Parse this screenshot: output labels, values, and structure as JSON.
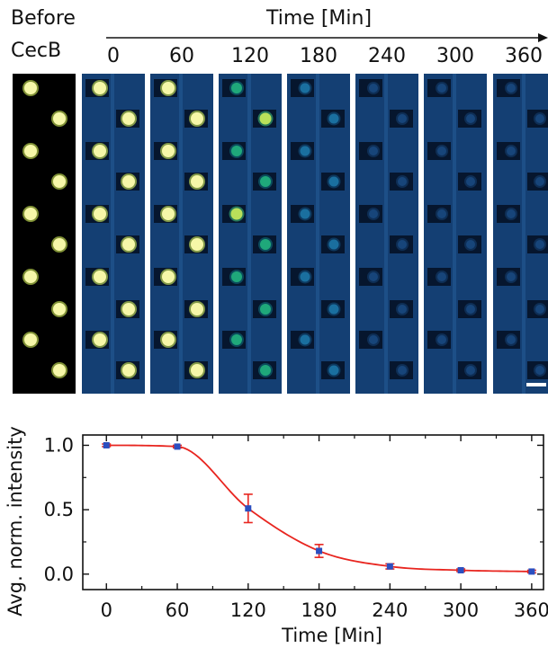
{
  "header": {
    "before_label_line1": "Before",
    "before_label_line2": "CecB",
    "time_axis_label": "Time [Min]",
    "time_labels": [
      "0",
      "60",
      "120",
      "180",
      "240",
      "300",
      "360"
    ]
  },
  "micrographs": {
    "panel_count": 8,
    "droplet_brightness": [
      1.0,
      1.0,
      0.99,
      0.51,
      0.18,
      0.06,
      0.03,
      0.02
    ]
  },
  "chart_data": {
    "type": "scatter",
    "x": [
      0,
      60,
      120,
      180,
      240,
      300,
      360
    ],
    "y": [
      1.0,
      0.99,
      0.51,
      0.18,
      0.06,
      0.03,
      0.02
    ],
    "error": [
      0.01,
      0.01,
      0.11,
      0.05,
      0.02,
      0.01,
      0.01
    ],
    "fit_line": true,
    "xlabel": "Time [Min]",
    "ylabel": "Avg. norm. intensity",
    "xticks": [
      "0",
      "60",
      "120",
      "180",
      "240",
      "300",
      "360"
    ],
    "yticks": [
      "0.0",
      "0.5",
      "1.0"
    ],
    "xlim": [
      -20,
      370
    ],
    "ylim": [
      -0.12,
      1.08
    ],
    "marker_color": "#2b4fc0",
    "line_color": "#e8251f",
    "errorbar_color": "#e8251f"
  }
}
